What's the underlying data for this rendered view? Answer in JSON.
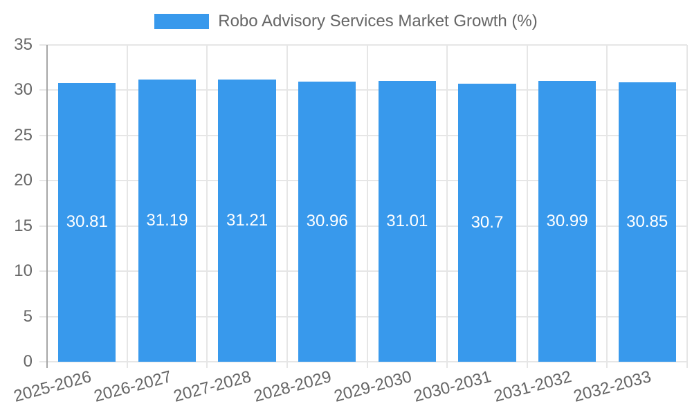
{
  "legend": {
    "label": "Robo Advisory Services Market Growth (%)"
  },
  "chart_data": {
    "type": "bar",
    "title": "Robo Advisory Services Market Growth (%)",
    "categories": [
      "2025-2026",
      "2026-2027",
      "2027-2028",
      "2028-2029",
      "2029-2030",
      "2030-2031",
      "2031-2032",
      "2032-2033"
    ],
    "values": [
      30.81,
      31.19,
      31.21,
      30.96,
      31.01,
      30.7,
      30.99,
      30.85
    ],
    "series": [
      {
        "name": "Robo Advisory Services Market Growth (%)",
        "values": [
          30.81,
          31.19,
          31.21,
          30.96,
          31.01,
          30.7,
          30.99,
          30.85
        ]
      }
    ],
    "xlabel": "",
    "ylabel": "",
    "ylim": [
      0,
      35
    ],
    "yticks": [
      0,
      5,
      10,
      15,
      20,
      25,
      30,
      35
    ],
    "grid": true,
    "legend_position": "top",
    "x_tick_rotation_deg": -15,
    "bar_color": "#3899ec",
    "value_label_color": "#ffffff",
    "tick_label_color": "#666666",
    "grid_color": "#e6e6e6",
    "axis_line_color": "#a6a6a6",
    "background_color": "#ffffff"
  }
}
